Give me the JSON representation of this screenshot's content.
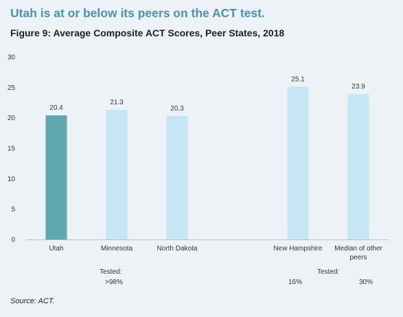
{
  "headline": "Utah is at or below its peers on the ACT test.",
  "figure_title": "Figure 9: Average Composite ACT Scores, Peer States, 2018",
  "source": "Source: ACT.",
  "tested_notes": {
    "left_label": "Tested:",
    "left_value": ">98%",
    "right_label": "Tested:",
    "right_value_1": "16%",
    "right_value_2": "30%"
  },
  "colors": {
    "highlight": "#5ea8ae",
    "bar": "#c6e5f5",
    "headline": "#4e8fb8",
    "axis": "#bdbdbd"
  },
  "chart_data": {
    "type": "bar",
    "categories": [
      "Utah",
      "Minnesota",
      "North Dakota",
      "",
      "New Hampshire",
      "Median of other peers"
    ],
    "category_lines": [
      [
        "Utah"
      ],
      [
        "Minnesota"
      ],
      [
        "North Dakota"
      ],
      [],
      [
        "New Hampshire"
      ],
      [
        "Median of other",
        "peers"
      ]
    ],
    "values": [
      20.4,
      21.3,
      20.3,
      null,
      25.1,
      23.9
    ],
    "value_labels": [
      "20.4",
      "21.3",
      "20.3",
      "",
      "25.1",
      "23.9"
    ],
    "highlight_index": 0,
    "ylim": [
      0,
      30
    ],
    "yticks": [
      0,
      5,
      10,
      15,
      20,
      25,
      30
    ],
    "grid": false,
    "xlabel": "",
    "ylabel": ""
  }
}
